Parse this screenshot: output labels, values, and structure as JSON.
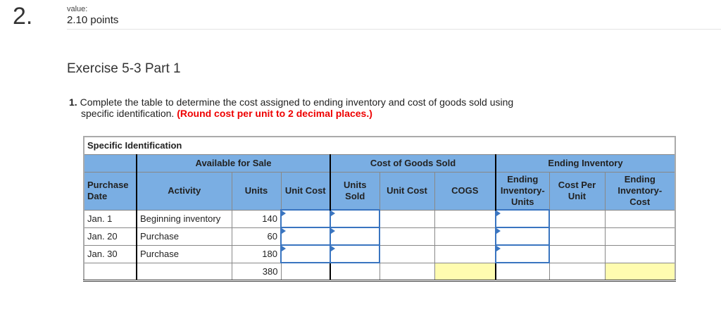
{
  "question": {
    "number": "2.",
    "value_label": "value:",
    "points": "2.10 points"
  },
  "exercise_title": "Exercise 5-3 Part 1",
  "instructions": {
    "num": "1.",
    "line1": "Complete the table to determine the cost assigned to ending inventory and cost of goods sold using",
    "line2": "specific identification.",
    "note": "(Round cost per unit to 2 decimal places.)"
  },
  "table": {
    "title": "Specific Identification",
    "groups": [
      "Available for Sale",
      "Cost of Goods Sold",
      "Ending Inventory"
    ],
    "headers": [
      "Purchase Date",
      "Activity",
      "Units",
      "Unit Cost",
      "Units Sold",
      "Unit Cost",
      "COGS",
      "Ending Inventory-Units",
      "Cost Per Unit",
      "Ending Inventory-Cost"
    ],
    "rows": [
      {
        "date": "Jan. 1",
        "activity": "Beginning inventory",
        "units": "140"
      },
      {
        "date": "Jan. 20",
        "activity": "Purchase",
        "units": "60"
      },
      {
        "date": "Jan. 30",
        "activity": "Purchase",
        "units": "180"
      }
    ],
    "total_units": "380",
    "input_color": "#3a75c0",
    "header_color": "#7aaee3",
    "total_highlight": "#fffcb0"
  }
}
